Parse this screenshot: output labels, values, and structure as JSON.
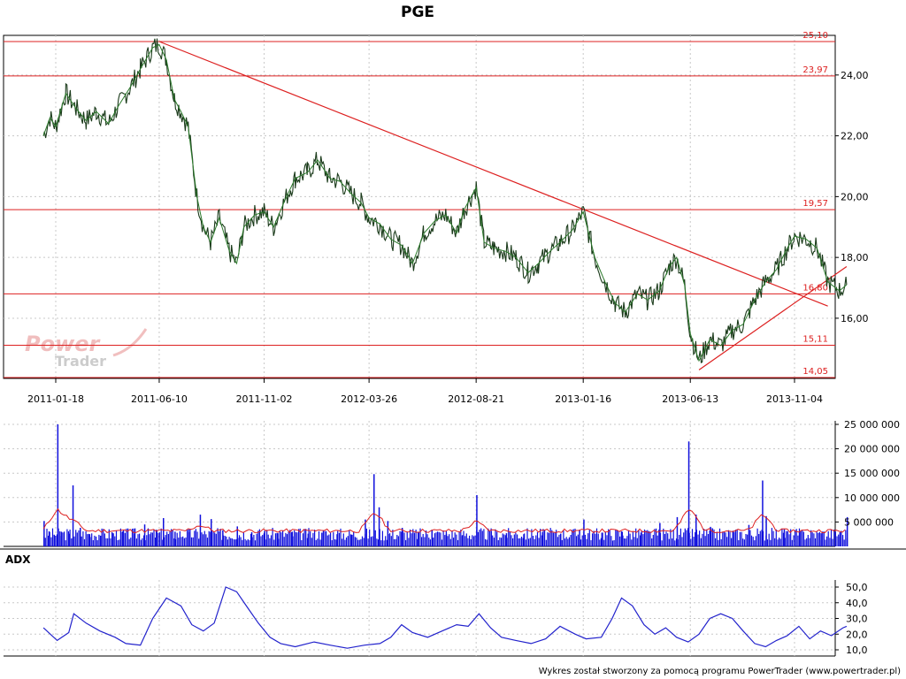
{
  "chart_data": [
    {
      "type": "line",
      "panel": "price",
      "title": "PGE",
      "y_ticks": [
        16,
        18,
        20,
        22,
        24
      ],
      "y_tick_labels": [
        "16,00",
        "18,00",
        "20,00",
        "22,00",
        "24,00"
      ],
      "ylim": [
        14.0,
        25.2
      ],
      "x_tick_labels": [
        "2011-01-18",
        "2011-06-10",
        "2011-11-02",
        "2012-03-26",
        "2012-08-21",
        "2013-01-16",
        "2013-06-13",
        "2013-11-04"
      ],
      "grid": true,
      "horizontal_levels": [
        {
          "value": 25.1,
          "label": "25,10"
        },
        {
          "value": 23.97,
          "label": "23,97"
        },
        {
          "value": 19.57,
          "label": "19,57"
        },
        {
          "value": 16.8,
          "label": "16,80"
        },
        {
          "value": 15.11,
          "label": "15,11"
        },
        {
          "value": 14.05,
          "label": "14,05"
        }
      ],
      "trend_lines": [
        {
          "from": {
            "date": "2011-06-10",
            "value": 25.1
          },
          "to": {
            "date": "2013-12-20",
            "value": 16.4
          }
        },
        {
          "from": {
            "date": "2013-06-25",
            "value": 14.3
          },
          "to": {
            "date": "2014-01-15",
            "value": 17.7
          }
        }
      ],
      "series": [
        {
          "color": "#2a7a2a",
          "points": [
            [
              "2011-01-01",
              22.0
            ],
            [
              "2011-01-10",
              22.6
            ],
            [
              "2011-01-18",
              22.3
            ],
            [
              "2011-02-01",
              23.4
            ],
            [
              "2011-02-15",
              22.9
            ],
            [
              "2011-03-01",
              22.5
            ],
            [
              "2011-03-15",
              22.8
            ],
            [
              "2011-04-01",
              22.4
            ],
            [
              "2011-04-15",
              23.0
            ],
            [
              "2011-05-01",
              23.6
            ],
            [
              "2011-05-15",
              24.2
            ],
            [
              "2011-06-01",
              24.9
            ],
            [
              "2011-06-10",
              25.0
            ],
            [
              "2011-06-20",
              24.5
            ],
            [
              "2011-07-01",
              23.2
            ],
            [
              "2011-07-10",
              22.8
            ],
            [
              "2011-07-20",
              22.3
            ],
            [
              "2011-08-01",
              20.0
            ],
            [
              "2011-08-10",
              19.0
            ],
            [
              "2011-08-20",
              18.5
            ],
            [
              "2011-09-01",
              19.3
            ],
            [
              "2011-09-15",
              18.2
            ],
            [
              "2011-09-25",
              17.8
            ],
            [
              "2011-10-05",
              19.0
            ],
            [
              "2011-10-20",
              19.4
            ],
            [
              "2011-11-02",
              19.5
            ],
            [
              "2011-11-15",
              19.0
            ],
            [
              "2011-12-01",
              19.9
            ],
            [
              "2011-12-15",
              20.6
            ],
            [
              "2012-01-01",
              20.8
            ],
            [
              "2012-01-15",
              21.2
            ],
            [
              "2012-02-01",
              20.6
            ],
            [
              "2012-02-15",
              20.5
            ],
            [
              "2012-03-01",
              20.1
            ],
            [
              "2012-03-15",
              19.8
            ],
            [
              "2012-03-26",
              19.3
            ],
            [
              "2012-04-10",
              19.1
            ],
            [
              "2012-04-25",
              18.6
            ],
            [
              "2012-05-10",
              18.4
            ],
            [
              "2012-05-25",
              17.8
            ],
            [
              "2012-06-10",
              18.8
            ],
            [
              "2012-06-25",
              19.2
            ],
            [
              "2012-07-10",
              19.4
            ],
            [
              "2012-07-25",
              18.8
            ],
            [
              "2012-08-05",
              19.6
            ],
            [
              "2012-08-21",
              20.3
            ],
            [
              "2012-09-01",
              18.5
            ],
            [
              "2012-09-15",
              18.3
            ],
            [
              "2012-10-01",
              18.2
            ],
            [
              "2012-10-15",
              18.0
            ],
            [
              "2012-11-01",
              17.5
            ],
            [
              "2012-11-15",
              17.8
            ],
            [
              "2012-12-01",
              18.2
            ],
            [
              "2012-12-15",
              18.5
            ],
            [
              "2013-01-01",
              18.9
            ],
            [
              "2013-01-16",
              19.5
            ],
            [
              "2013-02-01",
              18.0
            ],
            [
              "2013-02-15",
              17.2
            ],
            [
              "2013-03-01",
              16.5
            ],
            [
              "2013-03-15",
              16.2
            ],
            [
              "2013-04-01",
              16.8
            ],
            [
              "2013-04-15",
              16.6
            ],
            [
              "2013-05-01",
              16.9
            ],
            [
              "2013-05-15",
              17.7
            ],
            [
              "2013-05-25",
              18.0
            ],
            [
              "2013-06-05",
              17.1
            ],
            [
              "2013-06-13",
              15.5
            ],
            [
              "2013-06-25",
              14.6
            ],
            [
              "2013-07-10",
              15.3
            ],
            [
              "2013-07-25",
              15.1
            ],
            [
              "2013-08-10",
              15.6
            ],
            [
              "2013-08-25",
              15.8
            ],
            [
              "2013-09-10",
              16.6
            ],
            [
              "2013-09-25",
              17.2
            ],
            [
              "2013-10-10",
              17.6
            ],
            [
              "2013-10-25",
              18.3
            ],
            [
              "2013-11-04",
              18.7
            ],
            [
              "2013-11-20",
              18.6
            ],
            [
              "2013-12-05",
              18.3
            ],
            [
              "2013-12-20",
              17.2
            ],
            [
              "2014-01-05",
              16.9
            ],
            [
              "2014-01-15",
              17.1
            ]
          ]
        }
      ]
    },
    {
      "type": "bar",
      "panel": "volume",
      "y_ticks": [
        5000000,
        10000000,
        15000000,
        20000000,
        25000000
      ],
      "y_tick_labels": [
        "5 000 000",
        "10 000 000",
        "15 000 000",
        "20 000 000",
        "25 000 000"
      ],
      "ylim": [
        0,
        26000000
      ],
      "bar_color": "#1010dd",
      "average_line_color": "#dd2020",
      "bars": [
        [
          "2011-01-01",
          5200000
        ],
        [
          "2011-01-08",
          3100000
        ],
        [
          "2011-01-15",
          2400000
        ],
        [
          "2011-01-20",
          25000000
        ],
        [
          "2011-01-25",
          3000000
        ],
        [
          "2011-02-05",
          2600000
        ],
        [
          "2011-02-10",
          12500000
        ],
        [
          "2011-02-20",
          3800000
        ],
        [
          "2011-03-05",
          2500000
        ],
        [
          "2011-03-20",
          2200000
        ],
        [
          "2011-04-05",
          2800000
        ],
        [
          "2011-04-20",
          3100000
        ],
        [
          "2011-05-05",
          2600000
        ],
        [
          "2011-05-20",
          4500000
        ],
        [
          "2011-06-05",
          3400000
        ],
        [
          "2011-06-15",
          5800000
        ],
        [
          "2011-07-01",
          3000000
        ],
        [
          "2011-07-20",
          2900000
        ],
        [
          "2011-08-05",
          6500000
        ],
        [
          "2011-08-20",
          5600000
        ],
        [
          "2011-09-05",
          3300000
        ],
        [
          "2011-09-25",
          4100000
        ],
        [
          "2011-10-15",
          2900000
        ],
        [
          "2011-11-02",
          3200000
        ],
        [
          "2011-11-20",
          2700000
        ],
        [
          "2011-12-10",
          3000000
        ],
        [
          "2012-01-01",
          2600000
        ],
        [
          "2012-01-20",
          2800000
        ],
        [
          "2012-02-10",
          2500000
        ],
        [
          "2012-03-01",
          2400000
        ],
        [
          "2012-03-20",
          5500000
        ],
        [
          "2012-04-01",
          14800000
        ],
        [
          "2012-04-08",
          8000000
        ],
        [
          "2012-04-20",
          5200000
        ],
        [
          "2012-05-10",
          3800000
        ],
        [
          "2012-06-01",
          3000000
        ],
        [
          "2012-06-20",
          3400000
        ],
        [
          "2012-07-10",
          2600000
        ],
        [
          "2012-08-01",
          2300000
        ],
        [
          "2012-08-21",
          10500000
        ],
        [
          "2012-09-10",
          3100000
        ],
        [
          "2012-10-01",
          2700000
        ],
        [
          "2012-10-25",
          2500000
        ],
        [
          "2012-11-20",
          2900000
        ],
        [
          "2012-12-15",
          2600000
        ],
        [
          "2013-01-10",
          3400000
        ],
        [
          "2013-01-16",
          5500000
        ],
        [
          "2013-02-10",
          2800000
        ],
        [
          "2013-03-10",
          3000000
        ],
        [
          "2013-04-05",
          2800000
        ],
        [
          "2013-05-01",
          4800000
        ],
        [
          "2013-05-25",
          6000000
        ],
        [
          "2013-06-10",
          21500000
        ],
        [
          "2013-06-20",
          6500000
        ],
        [
          "2013-07-10",
          4000000
        ],
        [
          "2013-08-10",
          3200000
        ],
        [
          "2013-09-01",
          4400000
        ],
        [
          "2013-09-20",
          13500000
        ],
        [
          "2013-09-25",
          6200000
        ],
        [
          "2013-10-20",
          3500000
        ],
        [
          "2013-11-10",
          3000000
        ],
        [
          "2013-12-10",
          2700000
        ],
        [
          "2014-01-05",
          2900000
        ],
        [
          "2014-01-15",
          6000000
        ]
      ]
    },
    {
      "type": "line",
      "panel": "adx",
      "title": "ADX",
      "y_ticks": [
        10,
        20,
        30,
        40,
        50
      ],
      "y_tick_labels": [
        "10,0",
        "20,0",
        "30,0",
        "40,0",
        "50,0"
      ],
      "ylim": [
        8,
        53
      ],
      "series": [
        {
          "name": "ADX",
          "color": "#2222cc",
          "points": [
            [
              "2011-01-01",
              24
            ],
            [
              "2011-01-20",
              16
            ],
            [
              "2011-02-05",
              21
            ],
            [
              "2011-02-12",
              33
            ],
            [
              "2011-03-01",
              27
            ],
            [
              "2011-03-20",
              22
            ],
            [
              "2011-04-10",
              18
            ],
            [
              "2011-04-25",
              14
            ],
            [
              "2011-05-15",
              13
            ],
            [
              "2011-06-01",
              30
            ],
            [
              "2011-06-20",
              43
            ],
            [
              "2011-07-10",
              38
            ],
            [
              "2011-07-25",
              26
            ],
            [
              "2011-08-10",
              22
            ],
            [
              "2011-08-25",
              27
            ],
            [
              "2011-09-10",
              50
            ],
            [
              "2011-09-25",
              47
            ],
            [
              "2011-10-10",
              37
            ],
            [
              "2011-10-25",
              27
            ],
            [
              "2011-11-10",
              18
            ],
            [
              "2011-11-25",
              14
            ],
            [
              "2011-12-15",
              12
            ],
            [
              "2012-01-10",
              15
            ],
            [
              "2012-02-01",
              13
            ],
            [
              "2012-02-25",
              11
            ],
            [
              "2012-03-20",
              13
            ],
            [
              "2012-04-10",
              14
            ],
            [
              "2012-04-25",
              18
            ],
            [
              "2012-05-10",
              26
            ],
            [
              "2012-05-25",
              21
            ],
            [
              "2012-06-15",
              18
            ],
            [
              "2012-07-05",
              22
            ],
            [
              "2012-07-25",
              26
            ],
            [
              "2012-08-10",
              25
            ],
            [
              "2012-08-25",
              33
            ],
            [
              "2012-09-10",
              24
            ],
            [
              "2012-09-25",
              18
            ],
            [
              "2012-10-15",
              16
            ],
            [
              "2012-11-05",
              14
            ],
            [
              "2012-11-25",
              17
            ],
            [
              "2012-12-15",
              25
            ],
            [
              "2013-01-05",
              20
            ],
            [
              "2013-01-20",
              17
            ],
            [
              "2013-02-10",
              18
            ],
            [
              "2013-02-25",
              30
            ],
            [
              "2013-03-10",
              43
            ],
            [
              "2013-03-25",
              38
            ],
            [
              "2013-04-10",
              26
            ],
            [
              "2013-04-25",
              20
            ],
            [
              "2013-05-10",
              24
            ],
            [
              "2013-05-25",
              18
            ],
            [
              "2013-06-10",
              15
            ],
            [
              "2013-06-25",
              20
            ],
            [
              "2013-07-10",
              30
            ],
            [
              "2013-07-25",
              33
            ],
            [
              "2013-08-10",
              30
            ],
            [
              "2013-08-25",
              22
            ],
            [
              "2013-09-10",
              14
            ],
            [
              "2013-09-25",
              12
            ],
            [
              "2013-10-10",
              16
            ],
            [
              "2013-10-25",
              19
            ],
            [
              "2013-11-10",
              25
            ],
            [
              "2013-11-25",
              17
            ],
            [
              "2013-12-10",
              22
            ],
            [
              "2013-12-25",
              19
            ],
            [
              "2014-01-10",
              24
            ],
            [
              "2014-01-15",
              25
            ]
          ]
        }
      ]
    }
  ],
  "watermark": {
    "word1": "Power",
    "word2": "Trader"
  },
  "footer": {
    "credit": "Wykres został stworzony za pomocą programu PowerTrader (www.powertrader.pl)"
  },
  "colors": {
    "price_line": "#2a7a2a",
    "volume_bar": "#1010dd",
    "adx_line": "#2222cc",
    "support_resistance": "#dd2020",
    "grid": "#c8c8c8"
  }
}
